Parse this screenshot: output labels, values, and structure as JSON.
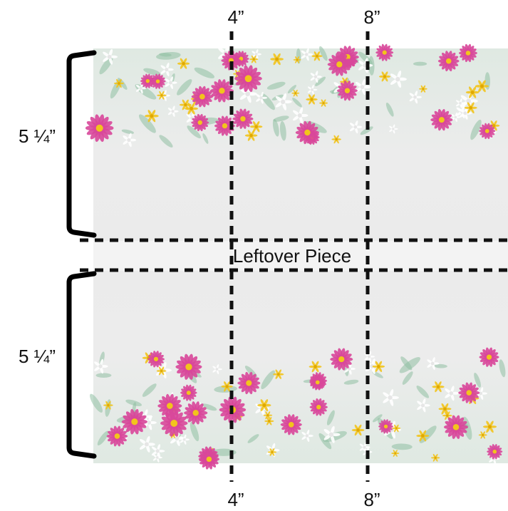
{
  "labels": {
    "top_left": "4”",
    "top_right": "8”",
    "bottom_left": "4”",
    "bottom_right": "8”",
    "side_top": "5 ¼”",
    "side_bottom": "5 ¼”",
    "middle": "Leftover Piece"
  },
  "colors": {
    "fabric_background": "#ededed",
    "leftover_band": "#f2f2f2",
    "dash_line": "#111111",
    "bracket": "#000000",
    "flower_pink": "#d8479a",
    "flower_yellow": "#f2c41c",
    "flower_white": "#ffffff",
    "leaf_green": "#8fbfa2"
  }
}
